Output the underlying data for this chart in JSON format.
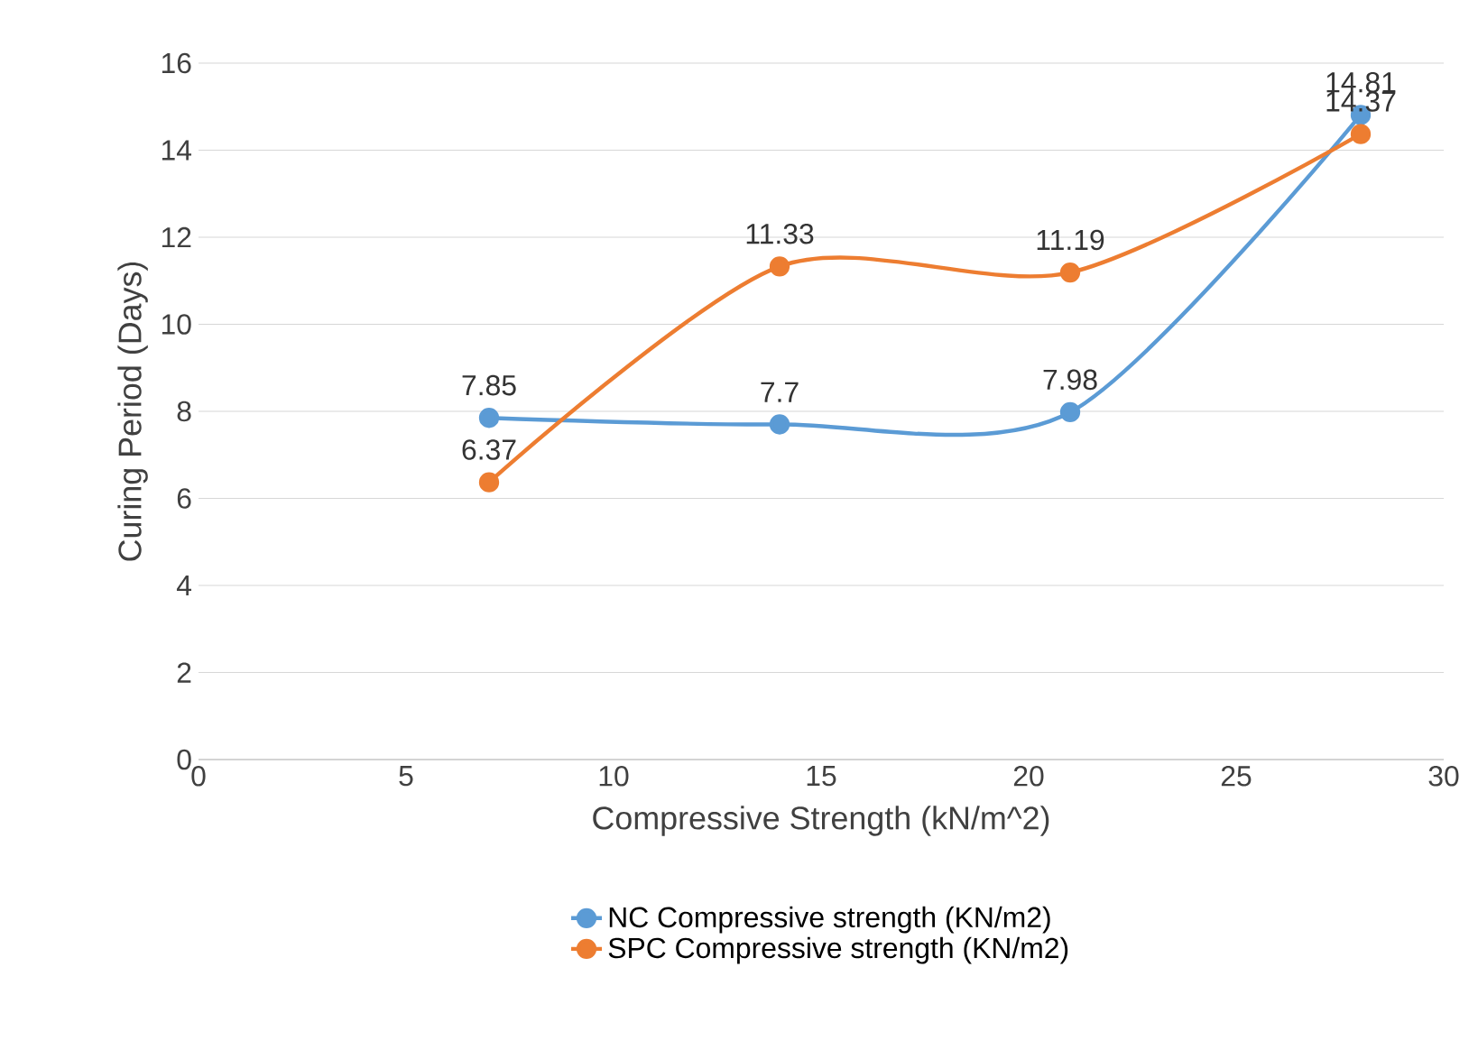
{
  "chart_data": {
    "type": "line",
    "xlabel": "Compressive Strength (kN/m^2)",
    "ylabel": "Curing Period (Days)",
    "x": [
      7,
      14,
      21,
      28
    ],
    "series": [
      {
        "name": "NC Compressive strength (KN/m2)",
        "color": "#5b9bd5",
        "values": [
          7.85,
          7.7,
          7.98,
          14.81
        ]
      },
      {
        "name": "SPC Compressive strength (KN/m2)",
        "color": "#ed7d31",
        "values": [
          6.37,
          11.33,
          11.19,
          14.37
        ]
      }
    ],
    "xlim": [
      0,
      30
    ],
    "xticks": [
      0,
      5,
      10,
      15,
      20,
      25,
      30
    ],
    "ylim": [
      0,
      16
    ],
    "yticks": [
      0,
      2,
      4,
      6,
      8,
      10,
      12,
      14,
      16
    ],
    "grid": "y",
    "legend": "bottom",
    "marker": "circle",
    "line_style": "solid",
    "data_labels": true
  }
}
